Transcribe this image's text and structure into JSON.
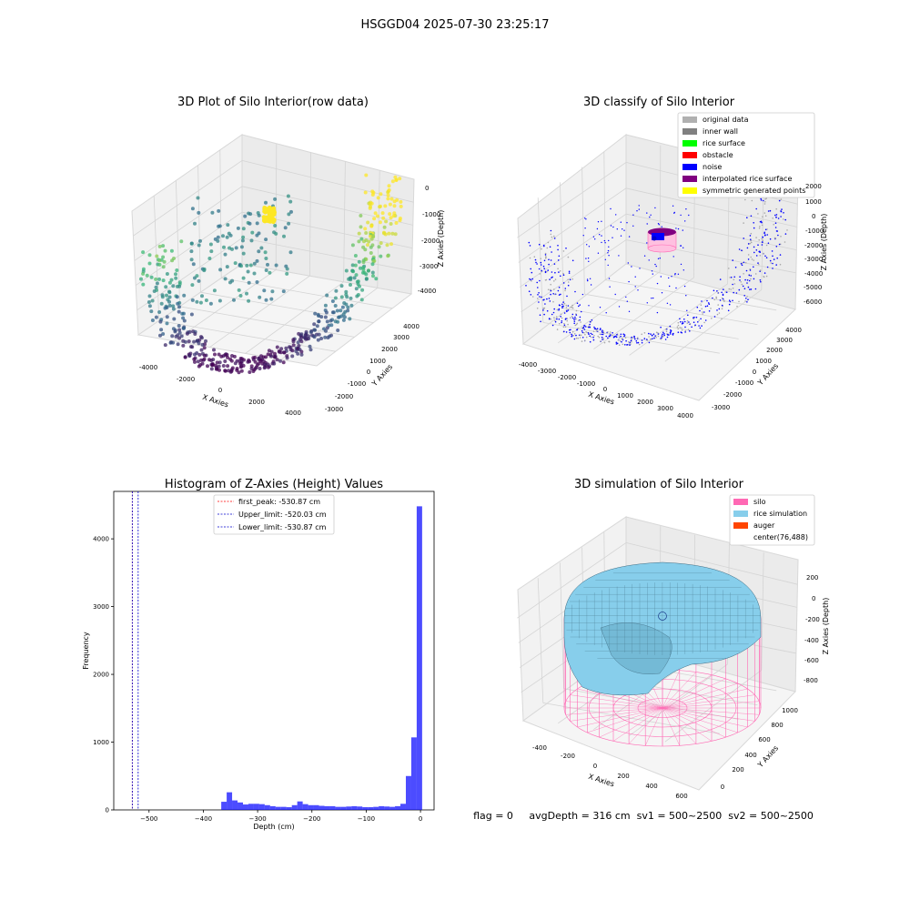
{
  "suptitle": "HSGGD04 2025-07-30 23:25:17",
  "chart_data": [
    {
      "type": "scatter",
      "projection": "3d",
      "title": "3D Plot of Silo Interior(row data)",
      "xlabel": "X Axies",
      "ylabel": "Y Axies",
      "zlabel": "Z Axies (Depth)",
      "x_ticks": [
        "-4000",
        "-2000",
        "0",
        "2000",
        "4000"
      ],
      "y_ticks": [
        "-3000",
        "-2000",
        "-1000",
        "0",
        "1000",
        "2000",
        "3000",
        "4000"
      ],
      "z_ticks": [
        "0",
        "-1000",
        "-2000",
        "-3000",
        "-4000"
      ],
      "colormap": [
        "#440154",
        "#31688e",
        "#35b779",
        "#fde725"
      ],
      "grid": true
    },
    {
      "type": "scatter",
      "projection": "3d",
      "title": "3D classify of Silo Interior",
      "xlabel": "X Axies",
      "ylabel": "Y Axies",
      "zlabel": "Z Axies (Depth)",
      "x_ticks": [
        "-4000",
        "-3000",
        "-2000",
        "-1000",
        "0",
        "1000",
        "2000",
        "3000",
        "4000"
      ],
      "y_ticks": [
        "-3000",
        "-2000",
        "-1000",
        "0",
        "1000",
        "2000",
        "3000",
        "4000"
      ],
      "z_ticks": [
        "2000",
        "1000",
        "0",
        "-1000",
        "-2000",
        "-3000",
        "-4000",
        "-5000",
        "-6000"
      ],
      "legend_position": "top-right",
      "legend": [
        {
          "label": "original data",
          "color": "#b0b0b0"
        },
        {
          "label": "inner wall",
          "color": "#808080"
        },
        {
          "label": "rice surface",
          "color": "#00ff00"
        },
        {
          "label": "obstacle",
          "color": "#ff0000"
        },
        {
          "label": "noise",
          "color": "#0000ff"
        },
        {
          "label": "interpolated rice surface",
          "color": "#800080"
        },
        {
          "label": "symmetric generated points",
          "color": "#ffff00"
        }
      ],
      "grid": true
    },
    {
      "type": "bar",
      "title": "Histogram of Z-Axies (Height) Values",
      "xlabel": "Depth (cm)",
      "ylabel": "Frequency",
      "xlim": [
        -565,
        25
      ],
      "ylim": [
        0,
        4700
      ],
      "x_ticks": [
        -500,
        -400,
        -300,
        -200,
        -100,
        0
      ],
      "y_ticks": [
        0,
        1000,
        2000,
        3000,
        4000
      ],
      "bar_color": "#0000ff",
      "bins": [
        {
          "x0": -367,
          "x1": -357,
          "count": 120
        },
        {
          "x0": -357,
          "x1": -347,
          "count": 260
        },
        {
          "x0": -347,
          "x1": -337,
          "count": 140
        },
        {
          "x0": -337,
          "x1": -327,
          "count": 110
        },
        {
          "x0": -327,
          "x1": -317,
          "count": 80
        },
        {
          "x0": -317,
          "x1": -307,
          "count": 90
        },
        {
          "x0": -307,
          "x1": -297,
          "count": 90
        },
        {
          "x0": -297,
          "x1": -287,
          "count": 85
        },
        {
          "x0": -287,
          "x1": -277,
          "count": 70
        },
        {
          "x0": -277,
          "x1": -267,
          "count": 55
        },
        {
          "x0": -267,
          "x1": -257,
          "count": 45
        },
        {
          "x0": -257,
          "x1": -247,
          "count": 45
        },
        {
          "x0": -247,
          "x1": -237,
          "count": 40
        },
        {
          "x0": -237,
          "x1": -227,
          "count": 70
        },
        {
          "x0": -227,
          "x1": -217,
          "count": 125
        },
        {
          "x0": -217,
          "x1": -207,
          "count": 85
        },
        {
          "x0": -207,
          "x1": -197,
          "count": 70
        },
        {
          "x0": -197,
          "x1": -187,
          "count": 70
        },
        {
          "x0": -187,
          "x1": -177,
          "count": 60
        },
        {
          "x0": -177,
          "x1": -167,
          "count": 55
        },
        {
          "x0": -167,
          "x1": -157,
          "count": 55
        },
        {
          "x0": -157,
          "x1": -147,
          "count": 45
        },
        {
          "x0": -147,
          "x1": -137,
          "count": 45
        },
        {
          "x0": -137,
          "x1": -127,
          "count": 50
        },
        {
          "x0": -127,
          "x1": -117,
          "count": 55
        },
        {
          "x0": -117,
          "x1": -107,
          "count": 50
        },
        {
          "x0": -107,
          "x1": -97,
          "count": 40
        },
        {
          "x0": -97,
          "x1": -87,
          "count": 40
        },
        {
          "x0": -87,
          "x1": -77,
          "count": 45
        },
        {
          "x0": -77,
          "x1": -67,
          "count": 55
        },
        {
          "x0": -67,
          "x1": -57,
          "count": 50
        },
        {
          "x0": -57,
          "x1": -47,
          "count": 45
        },
        {
          "x0": -47,
          "x1": -37,
          "count": 55
        },
        {
          "x0": -37,
          "x1": -27,
          "count": 90
        },
        {
          "x0": -27,
          "x1": -17,
          "count": 500
        },
        {
          "x0": -17,
          "x1": -7,
          "count": 1070
        },
        {
          "x0": -7,
          "x1": 3,
          "count": 4480
        }
      ],
      "vlines": [
        {
          "x": -530.87,
          "color": "#ff0000",
          "label": "first_peak: -530.87 cm"
        },
        {
          "x": -520.03,
          "color": "#0000cc",
          "label": "Upper_limit: -520.03 cm"
        },
        {
          "x": -530.87,
          "color": "#0000cc",
          "label": "Lower_limit: -530.87 cm"
        }
      ],
      "legend_position": "top-center"
    },
    {
      "type": "surface",
      "projection": "3d",
      "title": "3D simulation of Silo Interior",
      "xlabel": "X Axies",
      "ylabel": "Y Axies",
      "zlabel": "Z Axies (Depth)",
      "x_ticks": [
        "-400",
        "-200",
        "0",
        "200",
        "400",
        "600"
      ],
      "y_ticks": [
        "0",
        "200",
        "400",
        "600",
        "800",
        "1000"
      ],
      "z_ticks": [
        "200",
        "0",
        "-200",
        "-400",
        "-600",
        "-800"
      ],
      "legend_position": "top-right",
      "legend": [
        {
          "label": "silo",
          "color": "#ff69b4"
        },
        {
          "label": "rice simulation",
          "color": "#87ceeb"
        },
        {
          "label": "auger",
          "color": "#ff4500"
        },
        {
          "label": "center(76,488)",
          "color": ""
        }
      ],
      "footer": "flag = 0     avgDepth = 316 cm  sv1 = 500~2500  sv2 = 500~2500"
    }
  ]
}
